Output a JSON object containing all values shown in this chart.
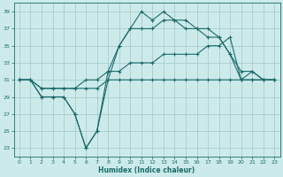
{
  "xlabel": "Humidex (Indice chaleur)",
  "bg_color": "#cdeaea",
  "grid_color": "#a0c8c8",
  "line_color": "#1a6b6b",
  "xlim": [
    -0.5,
    23.5
  ],
  "ylim": [
    22.0,
    40.0
  ],
  "yticks": [
    23,
    25,
    27,
    29,
    31,
    33,
    35,
    37,
    39
  ],
  "xticks": [
    0,
    1,
    2,
    3,
    4,
    5,
    6,
    7,
    8,
    9,
    10,
    11,
    12,
    13,
    14,
    15,
    16,
    17,
    18,
    19,
    20,
    21,
    22,
    23
  ],
  "series": [
    {
      "x": [
        0,
        1,
        2,
        3,
        4,
        5,
        6,
        7,
        8,
        9,
        10,
        11,
        12,
        13,
        14,
        15,
        16,
        17,
        18,
        19,
        20,
        21,
        22,
        23
      ],
      "y": [
        31,
        31,
        30,
        30,
        30,
        30,
        30,
        30,
        31,
        31,
        31,
        31,
        31,
        31,
        31,
        31,
        31,
        31,
        31,
        31,
        31,
        31,
        31,
        31
      ]
    },
    {
      "x": [
        0,
        1,
        2,
        3,
        4,
        5,
        6,
        7,
        8,
        9,
        10,
        11,
        12,
        13,
        14,
        15,
        16,
        17,
        18,
        19,
        20,
        21,
        22,
        23
      ],
      "y": [
        31,
        31,
        30,
        30,
        30,
        30,
        31,
        31,
        32,
        32,
        33,
        33,
        33,
        34,
        34,
        34,
        34,
        35,
        35,
        36,
        31,
        31,
        31,
        31
      ]
    },
    {
      "x": [
        0,
        1,
        2,
        3,
        4,
        5,
        6,
        7,
        8,
        9,
        10,
        11,
        12,
        13,
        14,
        15,
        16,
        17,
        18,
        19,
        20,
        21,
        22,
        23
      ],
      "y": [
        31,
        31,
        29,
        29,
        29,
        27,
        23,
        25,
        31,
        35,
        37,
        37,
        37,
        38,
        38,
        37,
        37,
        36,
        36,
        34,
        31,
        32,
        31,
        31
      ]
    },
    {
      "x": [
        0,
        1,
        2,
        3,
        4,
        5,
        6,
        7,
        8,
        9,
        10,
        11,
        12,
        13,
        14,
        15,
        16,
        17,
        18,
        19,
        20,
        21,
        22,
        23
      ],
      "y": [
        31,
        31,
        29,
        29,
        29,
        27,
        23,
        25,
        32,
        35,
        37,
        39,
        38,
        39,
        38,
        38,
        37,
        37,
        36,
        34,
        32,
        32,
        31,
        31
      ]
    }
  ]
}
